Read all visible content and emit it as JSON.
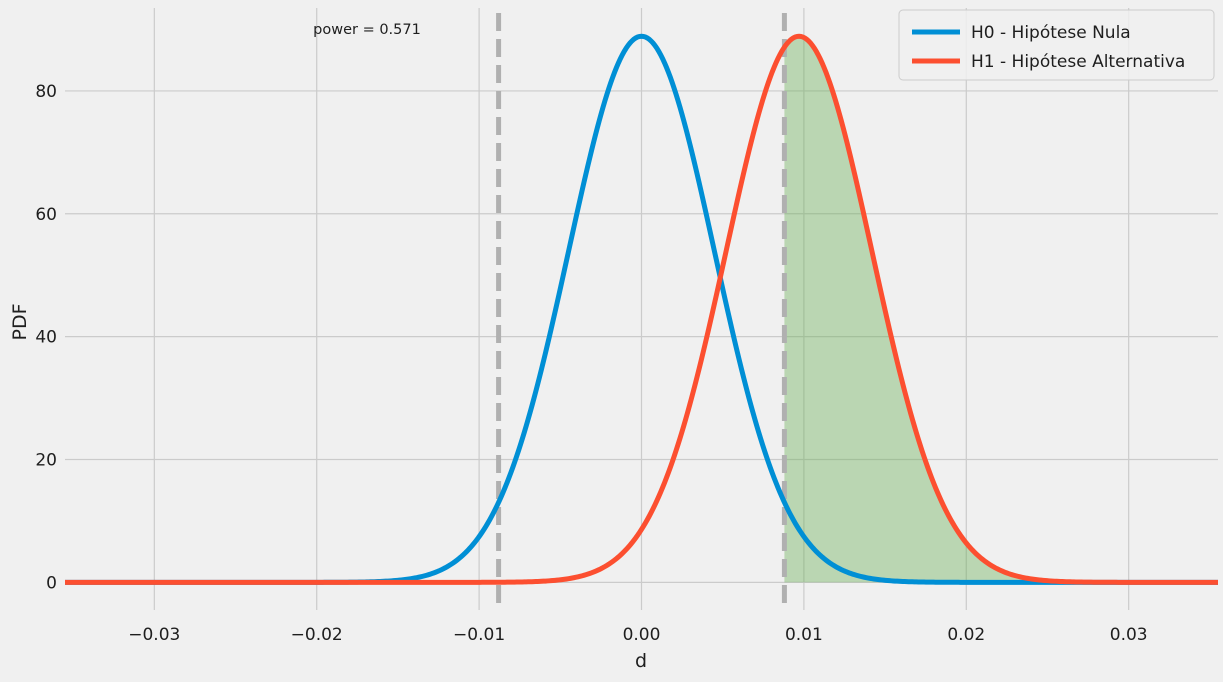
{
  "chart_data": {
    "type": "line",
    "xlabel": "d",
    "ylabel": "PDF",
    "xlim": [
      -0.0355,
      0.0355
    ],
    "ylim": [
      -4.5,
      93.5
    ],
    "xticks": [
      -0.03,
      -0.02,
      -0.01,
      0.0,
      0.01,
      0.02,
      0.03
    ],
    "xtick_labels": [
      "−0.03",
      "−0.02",
      "−0.01",
      "0.00",
      "0.01",
      "0.02",
      "0.03"
    ],
    "yticks": [
      0,
      20,
      40,
      60,
      80
    ],
    "ytick_labels": [
      "0",
      "20",
      "40",
      "60",
      "80"
    ],
    "grid": true,
    "legend_position": "top-right",
    "annotation": "power = 0.571",
    "critical_values": [
      -0.0088,
      0.0088
    ],
    "series": [
      {
        "name": "H0 - Hipótese Nula",
        "color": "#008fd5",
        "distribution": "normal",
        "mean": 0.0,
        "sd": 0.00449,
        "peak": 88.9
      },
      {
        "name": "H1 - Hipótese Alternativa",
        "color": "#fc4f30",
        "distribution": "normal",
        "mean": 0.0097,
        "sd": 0.00449,
        "peak": 88.9
      }
    ],
    "shaded_region": {
      "series": "H1 - Hipótese Alternativa",
      "from": 0.0088,
      "to": 0.0355,
      "color": "#6aaf55"
    }
  }
}
